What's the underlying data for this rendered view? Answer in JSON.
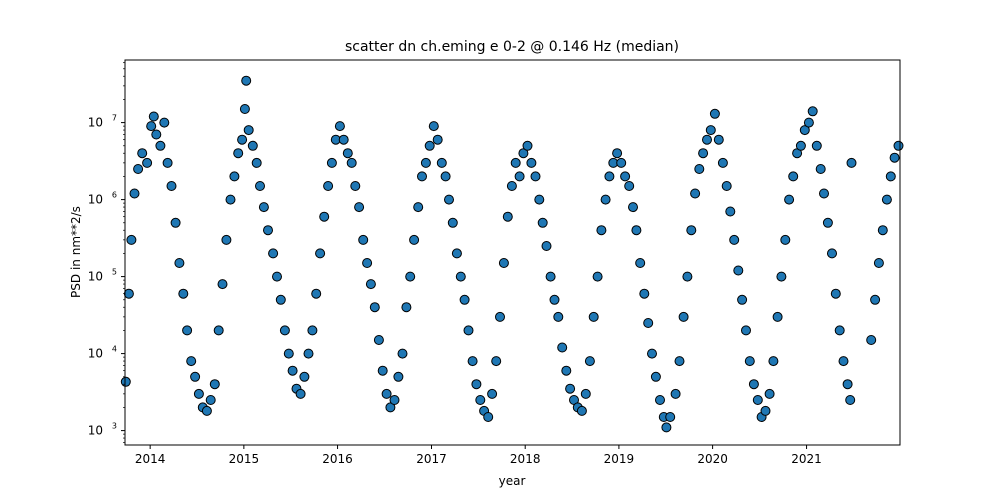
{
  "chart_data": {
    "type": "scatter",
    "title": "scatter dn ch.eming e 0-2 @ 0.146 Hz (median)",
    "xlabel": "year",
    "ylabel": "PSD in nm**2/s",
    "x_scale": "time",
    "y_scale": "log",
    "xlim": [
      "2013-09-25",
      "2021-12-31"
    ],
    "ylim": [
      650,
      65000000
    ],
    "x_ticks": [
      "2014",
      "2015",
      "2016",
      "2017",
      "2018",
      "2019",
      "2020",
      "2021"
    ],
    "y_ticks": [
      {
        "base": "10",
        "exp": "3",
        "value": 1000
      },
      {
        "base": "10",
        "exp": "4",
        "value": 10000
      },
      {
        "base": "10",
        "exp": "5",
        "value": 100000
      },
      {
        "base": "10",
        "exp": "6",
        "value": 1000000
      },
      {
        "base": "10",
        "exp": "7",
        "value": 10000000
      }
    ],
    "grid": false,
    "legend": "none",
    "marker_color": "#1f77b4",
    "marker_edge_color": "#000000",
    "series": [
      {
        "points": [
          [
            "2013-09-28",
            4300
          ],
          [
            "2013-10-10",
            60000
          ],
          [
            "2013-10-20",
            300000
          ],
          [
            "2013-11-01",
            1200000
          ],
          [
            "2013-11-15",
            2500000
          ],
          [
            "2013-12-01",
            4000000
          ],
          [
            "2013-12-20",
            3000000
          ],
          [
            "2014-01-05",
            9000000
          ],
          [
            "2014-01-15",
            12000000
          ],
          [
            "2014-01-25",
            7000000
          ],
          [
            "2014-02-10",
            5000000
          ],
          [
            "2014-02-25",
            10000000
          ],
          [
            "2014-03-10",
            3000000
          ],
          [
            "2014-03-25",
            1500000
          ],
          [
            "2014-04-10",
            500000
          ],
          [
            "2014-04-25",
            150000
          ],
          [
            "2014-05-10",
            60000
          ],
          [
            "2014-05-25",
            20000
          ],
          [
            "2014-06-10",
            8000
          ],
          [
            "2014-06-25",
            5000
          ],
          [
            "2014-07-10",
            3000
          ],
          [
            "2014-07-25",
            2000
          ],
          [
            "2014-08-10",
            1800
          ],
          [
            "2014-08-25",
            2500
          ],
          [
            "2014-09-10",
            4000
          ],
          [
            "2014-09-25",
            20000
          ],
          [
            "2014-10-10",
            80000
          ],
          [
            "2014-10-25",
            300000
          ],
          [
            "2014-11-10",
            1000000
          ],
          [
            "2014-11-25",
            2000000
          ],
          [
            "2014-12-10",
            4000000
          ],
          [
            "2014-12-25",
            6000000
          ],
          [
            "2015-01-05",
            15000000
          ],
          [
            "2015-01-10",
            35000000
          ],
          [
            "2015-01-20",
            8000000
          ],
          [
            "2015-02-05",
            5000000
          ],
          [
            "2015-02-20",
            3000000
          ],
          [
            "2015-03-05",
            1500000
          ],
          [
            "2015-03-20",
            800000
          ],
          [
            "2015-04-05",
            400000
          ],
          [
            "2015-04-25",
            200000
          ],
          [
            "2015-05-10",
            100000
          ],
          [
            "2015-05-25",
            50000
          ],
          [
            "2015-06-10",
            20000
          ],
          [
            "2015-06-25",
            10000
          ],
          [
            "2015-07-10",
            6000
          ],
          [
            "2015-07-25",
            3500
          ],
          [
            "2015-08-10",
            3000
          ],
          [
            "2015-08-25",
            5000
          ],
          [
            "2015-09-10",
            10000
          ],
          [
            "2015-09-25",
            20000
          ],
          [
            "2015-10-10",
            60000
          ],
          [
            "2015-10-25",
            200000
          ],
          [
            "2015-11-10",
            600000
          ],
          [
            "2015-11-25",
            1500000
          ],
          [
            "2015-12-10",
            3000000
          ],
          [
            "2015-12-25",
            6000000
          ],
          [
            "2016-01-10",
            9000000
          ],
          [
            "2016-01-25",
            6000000
          ],
          [
            "2016-02-10",
            4000000
          ],
          [
            "2016-02-25",
            3000000
          ],
          [
            "2016-03-10",
            1500000
          ],
          [
            "2016-03-25",
            800000
          ],
          [
            "2016-04-10",
            300000
          ],
          [
            "2016-04-25",
            150000
          ],
          [
            "2016-05-10",
            80000
          ],
          [
            "2016-05-25",
            40000
          ],
          [
            "2016-06-10",
            15000
          ],
          [
            "2016-06-25",
            6000
          ],
          [
            "2016-07-10",
            3000
          ],
          [
            "2016-07-25",
            2000
          ],
          [
            "2016-08-10",
            2500
          ],
          [
            "2016-08-25",
            5000
          ],
          [
            "2016-09-10",
            10000
          ],
          [
            "2016-09-25",
            40000
          ],
          [
            "2016-10-10",
            100000
          ],
          [
            "2016-10-25",
            300000
          ],
          [
            "2016-11-10",
            800000
          ],
          [
            "2016-11-25",
            2000000
          ],
          [
            "2016-12-10",
            3000000
          ],
          [
            "2016-12-25",
            5000000
          ],
          [
            "2017-01-10",
            9000000
          ],
          [
            "2017-01-25",
            6000000
          ],
          [
            "2017-02-10",
            3000000
          ],
          [
            "2017-02-25",
            2000000
          ],
          [
            "2017-03-10",
            1000000
          ],
          [
            "2017-03-25",
            500000
          ],
          [
            "2017-04-10",
            200000
          ],
          [
            "2017-04-25",
            100000
          ],
          [
            "2017-05-10",
            50000
          ],
          [
            "2017-05-25",
            20000
          ],
          [
            "2017-06-10",
            8000
          ],
          [
            "2017-06-25",
            4000
          ],
          [
            "2017-07-10",
            2500
          ],
          [
            "2017-07-25",
            1800
          ],
          [
            "2017-08-10",
            1500
          ],
          [
            "2017-08-25",
            3000
          ],
          [
            "2017-09-10",
            8000
          ],
          [
            "2017-09-25",
            30000
          ],
          [
            "2017-10-10",
            150000
          ],
          [
            "2017-10-25",
            600000
          ],
          [
            "2017-11-10",
            1500000
          ],
          [
            "2017-11-25",
            3000000
          ],
          [
            "2017-12-10",
            2000000
          ],
          [
            "2017-12-25",
            4000000
          ],
          [
            "2018-01-10",
            5000000
          ],
          [
            "2018-01-25",
            3000000
          ],
          [
            "2018-02-10",
            2000000
          ],
          [
            "2018-02-25",
            1000000
          ],
          [
            "2018-03-10",
            500000
          ],
          [
            "2018-03-25",
            250000
          ],
          [
            "2018-04-10",
            100000
          ],
          [
            "2018-04-25",
            50000
          ],
          [
            "2018-05-10",
            30000
          ],
          [
            "2018-05-25",
            12000
          ],
          [
            "2018-06-10",
            6000
          ],
          [
            "2018-06-25",
            3500
          ],
          [
            "2018-07-10",
            2500
          ],
          [
            "2018-07-25",
            2000
          ],
          [
            "2018-08-10",
            1800
          ],
          [
            "2018-08-25",
            3000
          ],
          [
            "2018-09-10",
            8000
          ],
          [
            "2018-09-25",
            30000
          ],
          [
            "2018-10-10",
            100000
          ],
          [
            "2018-10-25",
            400000
          ],
          [
            "2018-11-10",
            1000000
          ],
          [
            "2018-11-25",
            2000000
          ],
          [
            "2018-12-10",
            3000000
          ],
          [
            "2018-12-25",
            4000000
          ],
          [
            "2019-01-10",
            3000000
          ],
          [
            "2019-01-25",
            2000000
          ],
          [
            "2019-02-10",
            1500000
          ],
          [
            "2019-02-25",
            800000
          ],
          [
            "2019-03-10",
            400000
          ],
          [
            "2019-03-25",
            150000
          ],
          [
            "2019-04-10",
            60000
          ],
          [
            "2019-04-25",
            25000
          ],
          [
            "2019-05-10",
            10000
          ],
          [
            "2019-05-25",
            5000
          ],
          [
            "2019-06-10",
            2500
          ],
          [
            "2019-06-25",
            1500
          ],
          [
            "2019-07-05",
            1100
          ],
          [
            "2019-07-20",
            1500
          ],
          [
            "2019-08-10",
            3000
          ],
          [
            "2019-08-25",
            8000
          ],
          [
            "2019-09-10",
            30000
          ],
          [
            "2019-09-25",
            100000
          ],
          [
            "2019-10-10",
            400000
          ],
          [
            "2019-10-25",
            1200000
          ],
          [
            "2019-11-10",
            2500000
          ],
          [
            "2019-11-25",
            4000000
          ],
          [
            "2019-12-10",
            6000000
          ],
          [
            "2019-12-25",
            8000000
          ],
          [
            "2020-01-10",
            13000000
          ],
          [
            "2020-01-25",
            6000000
          ],
          [
            "2020-02-10",
            3000000
          ],
          [
            "2020-02-25",
            1500000
          ],
          [
            "2020-03-10",
            700000
          ],
          [
            "2020-03-25",
            300000
          ],
          [
            "2020-04-10",
            120000
          ],
          [
            "2020-04-25",
            50000
          ],
          [
            "2020-05-10",
            20000
          ],
          [
            "2020-05-25",
            8000
          ],
          [
            "2020-06-10",
            4000
          ],
          [
            "2020-06-25",
            2500
          ],
          [
            "2020-07-10",
            1500
          ],
          [
            "2020-07-25",
            1800
          ],
          [
            "2020-08-10",
            3000
          ],
          [
            "2020-08-25",
            8000
          ],
          [
            "2020-09-10",
            30000
          ],
          [
            "2020-09-25",
            100000
          ],
          [
            "2020-10-10",
            300000
          ],
          [
            "2020-10-25",
            1000000
          ],
          [
            "2020-11-10",
            2000000
          ],
          [
            "2020-11-25",
            4000000
          ],
          [
            "2020-12-10",
            5000000
          ],
          [
            "2020-12-25",
            8000000
          ],
          [
            "2021-01-10",
            10000000
          ],
          [
            "2021-01-25",
            14000000
          ],
          [
            "2021-02-10",
            5000000
          ],
          [
            "2021-02-25",
            2500000
          ],
          [
            "2021-03-10",
            1200000
          ],
          [
            "2021-03-25",
            500000
          ],
          [
            "2021-04-10",
            200000
          ],
          [
            "2021-04-25",
            60000
          ],
          [
            "2021-05-10",
            20000
          ],
          [
            "2021-05-25",
            8000
          ],
          [
            "2021-06-10",
            4000
          ],
          [
            "2021-06-20",
            2500
          ],
          [
            "2021-06-25",
            3000000
          ],
          [
            "2021-09-10",
            15000
          ],
          [
            "2021-09-25",
            50000
          ],
          [
            "2021-10-10",
            150000
          ],
          [
            "2021-10-25",
            400000
          ],
          [
            "2021-11-10",
            1000000
          ],
          [
            "2021-11-25",
            2000000
          ],
          [
            "2021-12-10",
            3500000
          ],
          [
            "2021-12-25",
            5000000
          ]
        ]
      }
    ]
  }
}
